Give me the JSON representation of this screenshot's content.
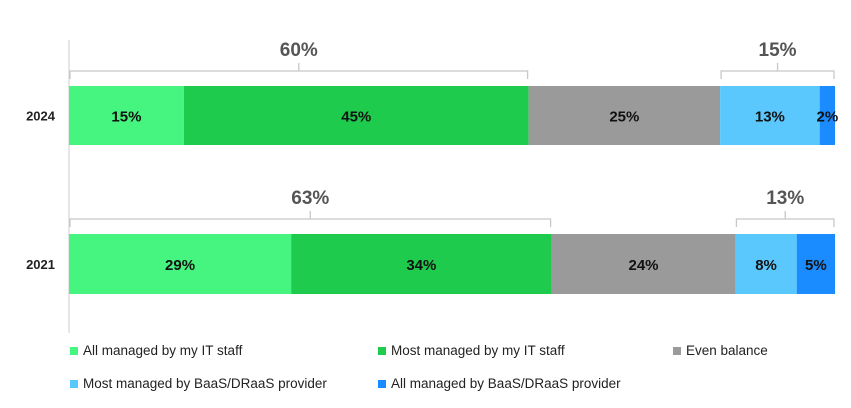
{
  "chart_data": {
    "type": "bar",
    "orientation": "horizontal",
    "stacked": true,
    "categories": [
      "2024",
      "2021"
    ],
    "xlim": [
      0,
      100
    ],
    "grid": false,
    "legend_position": "bottom",
    "series": [
      {
        "name": "All managed by my IT staff",
        "color": "#46f57f",
        "values": [
          15,
          29
        ]
      },
      {
        "name": "Most managed by my IT staff",
        "color": "#1ecb4c",
        "values": [
          45,
          34
        ]
      },
      {
        "name": "Even balance",
        "color": "#9a9a9a",
        "values": [
          25,
          24
        ]
      },
      {
        "name": "Most managed by BaaS/DRaaS provider",
        "color": "#5ac8fd",
        "values": [
          13,
          8
        ]
      },
      {
        "name": "All managed by BaaS/DRaaS provider",
        "color": "#1a8cff",
        "values": [
          2,
          5
        ]
      }
    ],
    "data_labels": [
      [
        "15%",
        "45%",
        "25%",
        "13%",
        "2%"
      ],
      [
        "29%",
        "34%",
        "24%",
        "8%",
        "5%"
      ]
    ],
    "annotations": [
      {
        "category": "2024",
        "label": "60%",
        "span": [
          0,
          60
        ]
      },
      {
        "category": "2024",
        "label": "15%",
        "span": [
          85,
          100
        ]
      },
      {
        "category": "2021",
        "label": "63%",
        "span": [
          0,
          63
        ]
      },
      {
        "category": "2021",
        "label": "13%",
        "span": [
          87,
          100
        ]
      }
    ]
  }
}
